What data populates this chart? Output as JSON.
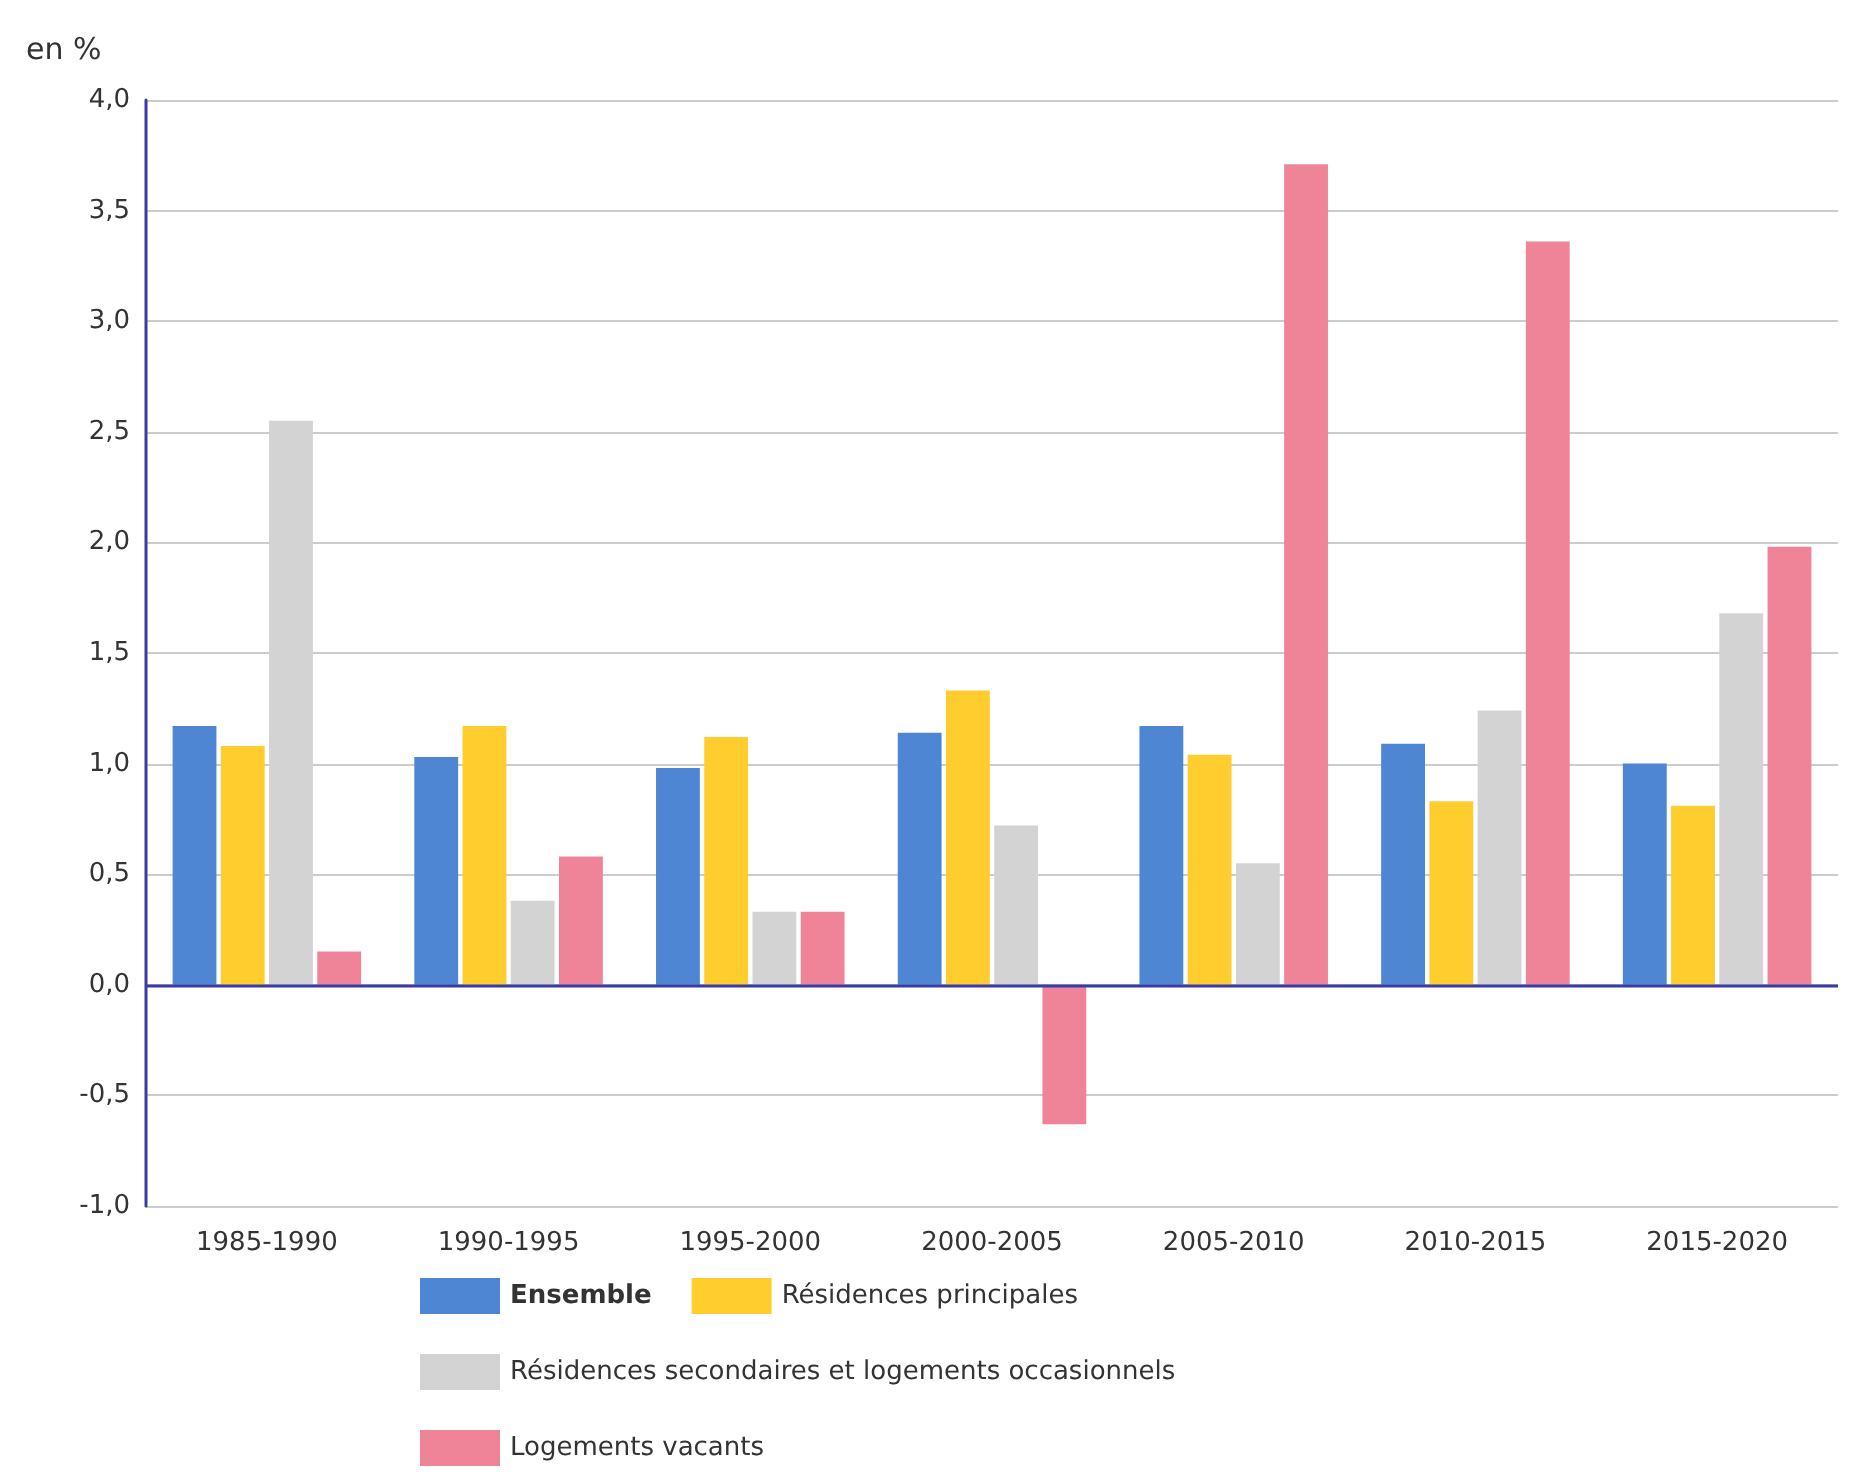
{
  "chart_data": {
    "type": "bar",
    "ylabel": "en %",
    "categories": [
      "1985-1990",
      "1990-1995",
      "1995-2000",
      "2000-2005",
      "2005-2010",
      "2010-2015",
      "2015-2020"
    ],
    "series": [
      {
        "name": "Ensemble",
        "color": "#4f86d4",
        "values": [
          1.17,
          1.03,
          0.98,
          1.14,
          1.17,
          1.09,
          1.0
        ]
      },
      {
        "name": "Résidences principales",
        "color": "#ffcd2e",
        "values": [
          1.08,
          1.17,
          1.12,
          1.33,
          1.04,
          0.83,
          0.81
        ]
      },
      {
        "name": "Résidences secondaires et logements occasionnels",
        "color": "#d3d3d3",
        "values": [
          2.55,
          0.38,
          0.33,
          0.72,
          0.55,
          1.24,
          1.68
        ]
      },
      {
        "name": "Logements vacants",
        "color": "#ef8498",
        "values": [
          0.15,
          0.58,
          0.33,
          -0.63,
          3.71,
          3.36,
          1.98
        ]
      }
    ],
    "ylim": [
      -1,
      4
    ],
    "yticks": [
      {
        "value": -1,
        "label": "-1,0"
      },
      {
        "value": -0.5,
        "label": "-0,5"
      },
      {
        "value": 0,
        "label": "0,0"
      },
      {
        "value": 0.5,
        "label": "0,5"
      },
      {
        "value": 1,
        "label": "1,0"
      },
      {
        "value": 1.5,
        "label": "1,5"
      },
      {
        "value": 2,
        "label": "2,0"
      },
      {
        "value": 2.5,
        "label": "2,5"
      },
      {
        "value": 3,
        "label": "3,0"
      },
      {
        "value": 3.5,
        "label": "3,5"
      },
      {
        "value": 4,
        "label": "4,0"
      }
    ],
    "ref_lines": [
      {
        "axis": "y",
        "value": 0,
        "color": "#3a3aa8"
      }
    ],
    "grid": "y",
    "legend": "bottom"
  }
}
